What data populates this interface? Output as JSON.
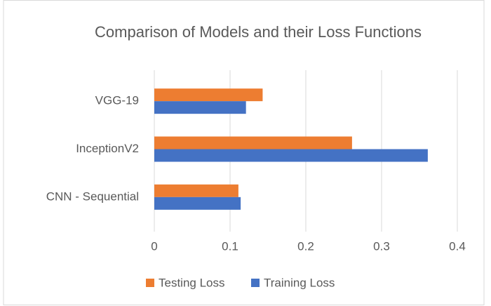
{
  "chart_data": {
    "type": "barh",
    "title": "Comparison of Models and their Loss Functions",
    "categories": [
      "CNN - Sequential",
      "InceptionV2",
      "VGG-19"
    ],
    "series": [
      {
        "name": "Testing Loss",
        "color": "#ed7d31",
        "values": [
          0.111,
          0.261,
          0.143
        ]
      },
      {
        "name": "Training Loss",
        "color": "#4472c4",
        "values": [
          0.114,
          0.361,
          0.121
        ]
      }
    ],
    "xlim": [
      0,
      0.4
    ],
    "xticks": [
      0,
      0.1,
      0.2,
      0.3,
      0.4
    ],
    "grid": true,
    "legend": "bottom"
  }
}
